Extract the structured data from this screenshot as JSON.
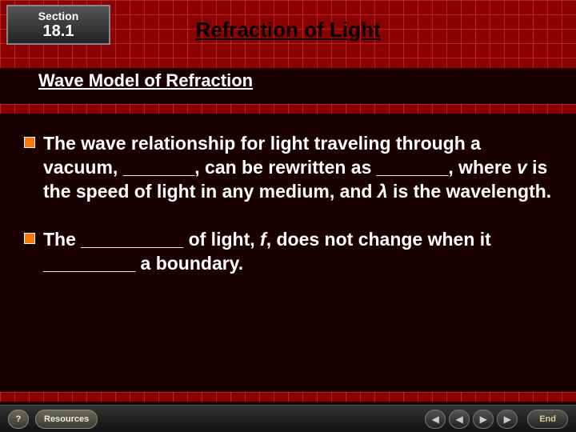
{
  "header": {
    "section_label": "Section",
    "section_number": "18.1"
  },
  "title": "Refraction of Light",
  "subtitle": "Wave Model of Refraction",
  "bullets": [
    {
      "html": "The wave relationship for light traveling through a vacuum, _______, can be rewritten as _______, where <span class='italic'>v</span> is the speed of light in any medium, and <span class='italic'>λ</span> is the wavelength."
    },
    {
      "html": "The __________ of light, <span class='italic'>f</span>, does not change when it _________ a boundary."
    }
  ],
  "nav": {
    "help": "?",
    "resources": "Resources",
    "prev_section": "◀",
    "prev": "◀",
    "next": "▶",
    "next_section": "▶",
    "end": "End"
  },
  "colors": {
    "grid_bg": "#8b0000",
    "bullet": "#ff7700",
    "text": "#ffffff"
  }
}
